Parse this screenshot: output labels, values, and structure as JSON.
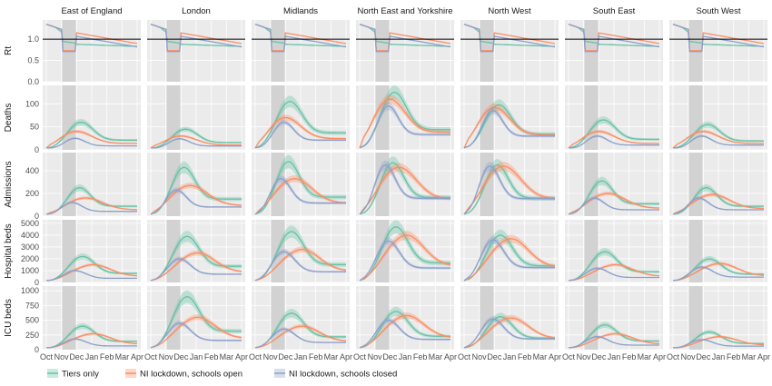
{
  "chart_data": {
    "type": "line",
    "regions": [
      "East of England",
      "London",
      "Midlands",
      "North East and Yorkshire",
      "North West",
      "South East",
      "South West"
    ],
    "metrics": [
      {
        "label": "Rt",
        "ylim": [
          0,
          1.45
        ],
        "ticks": [
          "0.0",
          "0.5",
          "1.0"
        ],
        "tick_values": [
          0,
          0.5,
          1.0
        ]
      },
      {
        "label": "Deaths",
        "ylim": [
          0,
          140
        ],
        "ticks": [
          "0",
          "50",
          "100"
        ],
        "tick_values": [
          0,
          50,
          100
        ]
      },
      {
        "label": "Admissions",
        "ylim": [
          0,
          560
        ],
        "ticks": [
          "0",
          "200",
          "400"
        ],
        "tick_values": [
          0,
          200,
          400
        ]
      },
      {
        "label": "Hospital beds",
        "ylim": [
          0,
          5300
        ],
        "ticks": [
          "0",
          "1000",
          "2000",
          "3000",
          "4000",
          "5000"
        ],
        "tick_values": [
          0,
          1000,
          2000,
          3000,
          4000,
          5000
        ]
      },
      {
        "label": "ICU beds",
        "ylim": [
          0,
          1080
        ],
        "ticks": [
          "0",
          "250",
          "500",
          "750",
          "1000"
        ],
        "tick_values": [
          0,
          250,
          500,
          750,
          1000
        ]
      }
    ],
    "x_ticks": [
      "Oct",
      "Nov",
      "Dec",
      "Jan",
      "Feb",
      "Mar",
      "Apr"
    ],
    "x_range": [
      "Oct",
      "Apr"
    ],
    "shaded_period": [
      "Nov",
      "Dec"
    ],
    "reference_line": {
      "panel_row": "Rt",
      "y": 1.0
    },
    "series": [
      {
        "name": "Tiers only",
        "color": "#66c2a5"
      },
      {
        "name": "NI lockdown, schools open",
        "color": "#fc8d62"
      },
      {
        "name": "NI lockdown, schools closed",
        "color": "#8da0cb"
      }
    ],
    "peaks": {
      "Deaths": {
        "East of England": [
          60,
          40,
          25
        ],
        "London": [
          45,
          30,
          24
        ],
        "Midlands": [
          105,
          70,
          60
        ],
        "North East and Yorkshire": [
          125,
          110,
          95
        ],
        "North West": [
          98,
          92,
          85
        ],
        "South East": [
          65,
          40,
          30
        ],
        "South West": [
          55,
          40,
          30
        ]
      },
      "Admissions": {
        "East of England": [
          250,
          160,
          120
        ],
        "London": [
          430,
          270,
          230
        ],
        "Midlands": [
          480,
          330,
          330
        ],
        "North East and Yorkshire": [
          470,
          430,
          450
        ],
        "North West": [
          450,
          440,
          440
        ],
        "South East": [
          310,
          200,
          160
        ],
        "South West": [
          250,
          190,
          160
        ]
      },
      "Hospital beds": {
        "East of England": [
          2200,
          1500,
          1000
        ],
        "London": [
          3900,
          2500,
          2000
        ],
        "Midlands": [
          4300,
          2800,
          2600
        ],
        "North East and Yorkshire": [
          4700,
          4000,
          3500
        ],
        "North West": [
          4000,
          3700,
          3600
        ],
        "South East": [
          2600,
          1500,
          1200
        ],
        "South West": [
          2000,
          1600,
          1300
        ]
      },
      "ICU beds": {
        "East of England": [
          400,
          270,
          180
        ],
        "London": [
          900,
          550,
          450
        ],
        "Midlands": [
          620,
          400,
          350
        ],
        "North East and Yorkshire": [
          650,
          580,
          500
        ],
        "North West": [
          560,
          540,
          520
        ],
        "South East": [
          420,
          270,
          220
        ],
        "South West": [
          300,
          220,
          170
        ]
      }
    },
    "legend_position": "bottom-left"
  }
}
